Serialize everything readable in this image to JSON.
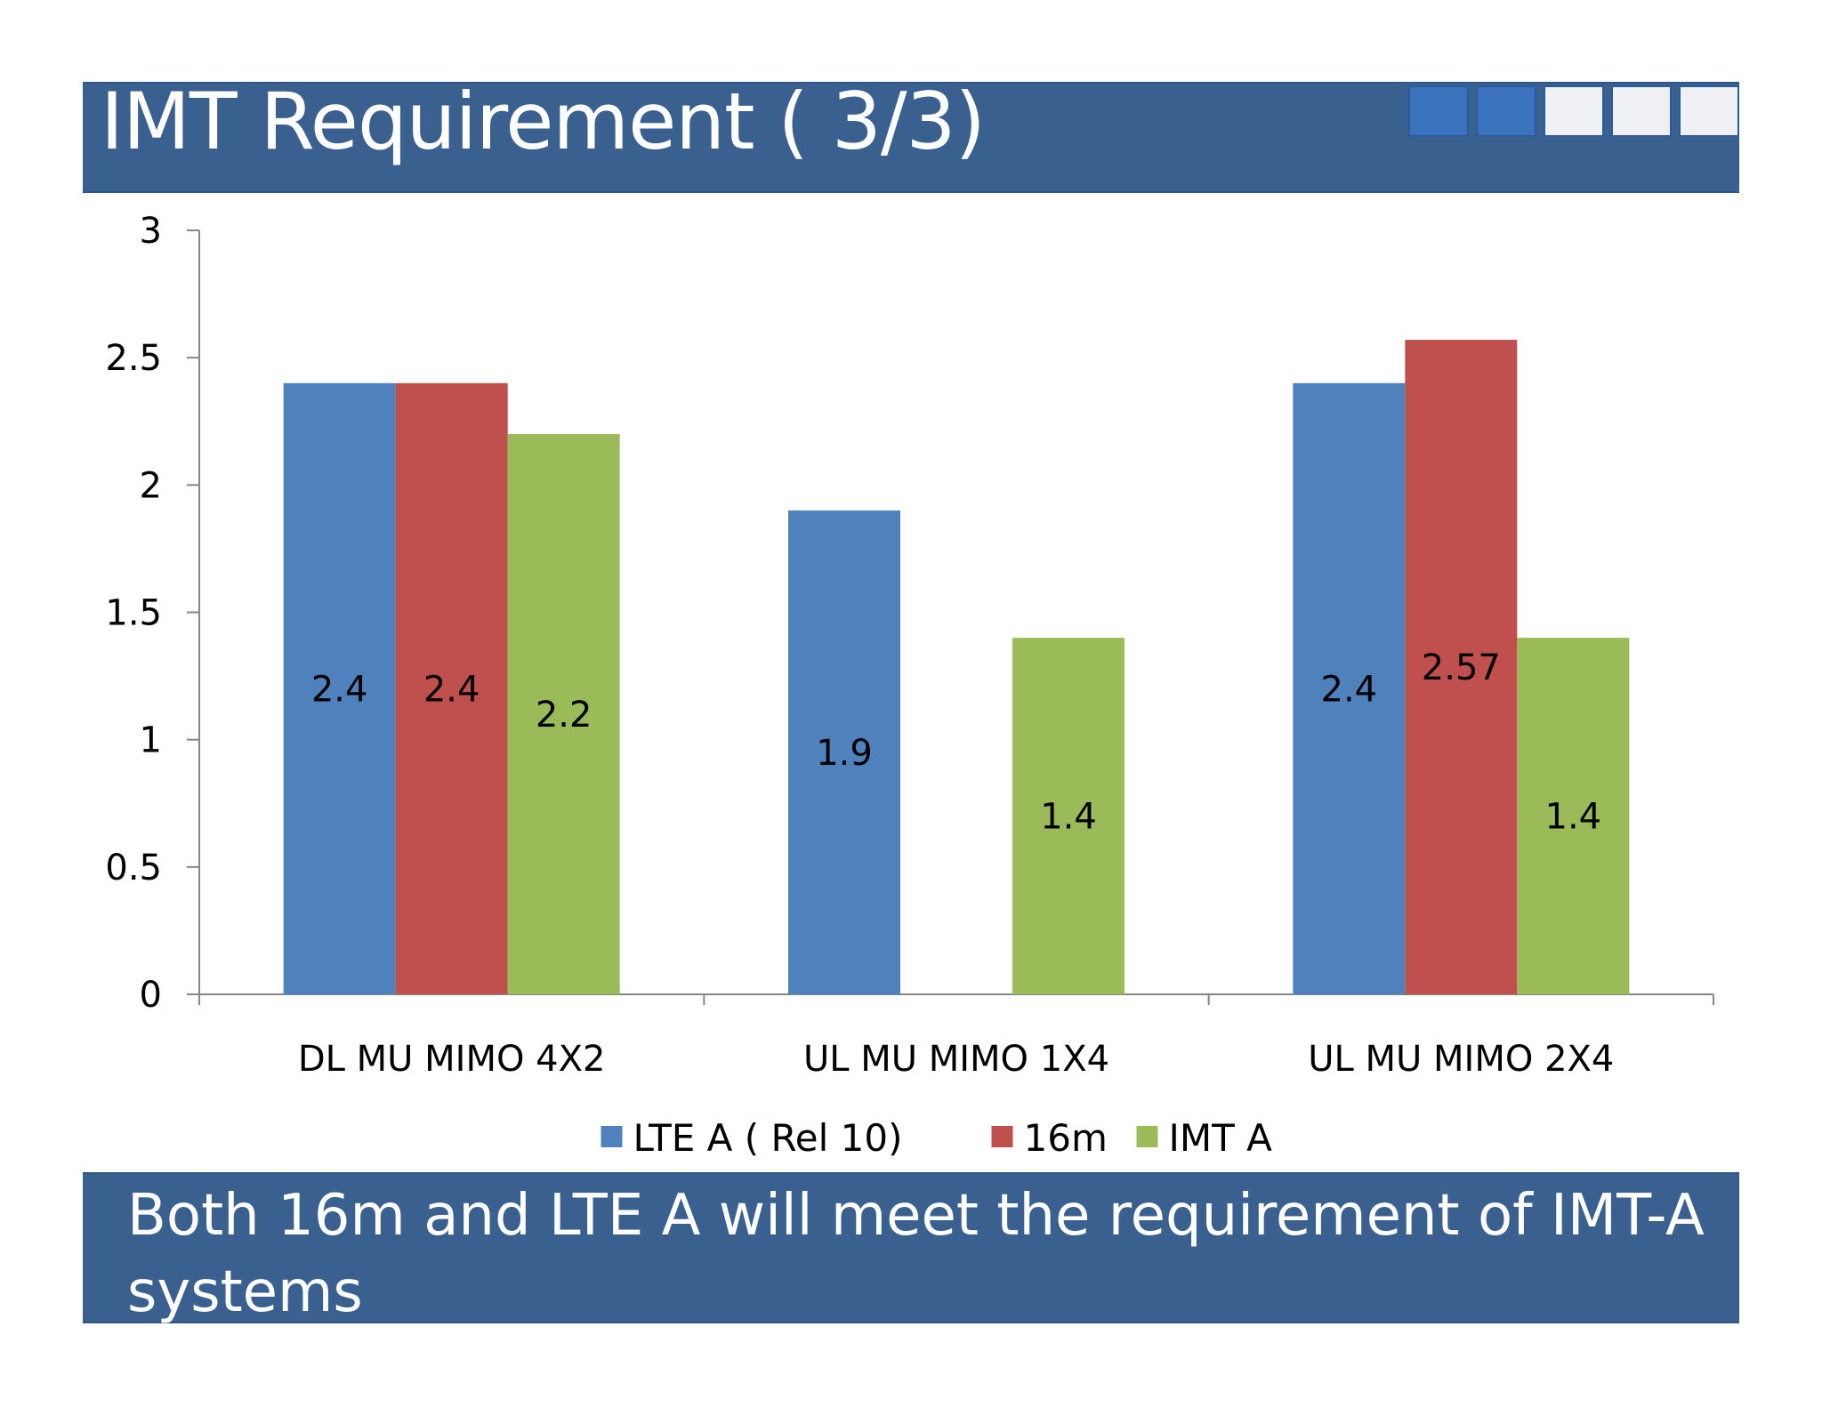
{
  "slide": {
    "title": "IMT Requirement ( 3/3)",
    "conclusion": "Both 16m and LTE A will meet the requirement of IMT-A systems",
    "progress": {
      "total": 5,
      "filled": 2
    },
    "colors": {
      "header_bg": "#3a6090",
      "progress_filled": "#3a72bd",
      "progress_empty": "#eef0f3"
    }
  },
  "chart_data": {
    "type": "bar",
    "title": "",
    "xlabel": "",
    "ylabel": "",
    "ylim": [
      0,
      3
    ],
    "yticks": [
      "0",
      "0.5",
      "1",
      "1.5",
      "2",
      "2.5",
      "3"
    ],
    "grid": false,
    "legend_position": "bottom",
    "categories": [
      "DL MU MIMO 4X2",
      "UL MU MIMO 1X4",
      "UL MU MIMO 2X4"
    ],
    "series": [
      {
        "name": "LTE A ( Rel 10)",
        "color": "#4f81bd",
        "values": [
          2.4,
          1.9,
          2.4
        ],
        "labels": [
          "2.4",
          "1.9",
          "2.4"
        ]
      },
      {
        "name": "16m",
        "color": "#c0504d",
        "values": [
          2.4,
          null,
          2.57
        ],
        "labels": [
          "2.4",
          "",
          "2.57"
        ]
      },
      {
        "name": "IMT A",
        "color": "#9bbb59",
        "values": [
          2.2,
          1.4,
          1.4
        ],
        "labels": [
          "2.2",
          "1.4",
          "1.4"
        ]
      }
    ]
  }
}
